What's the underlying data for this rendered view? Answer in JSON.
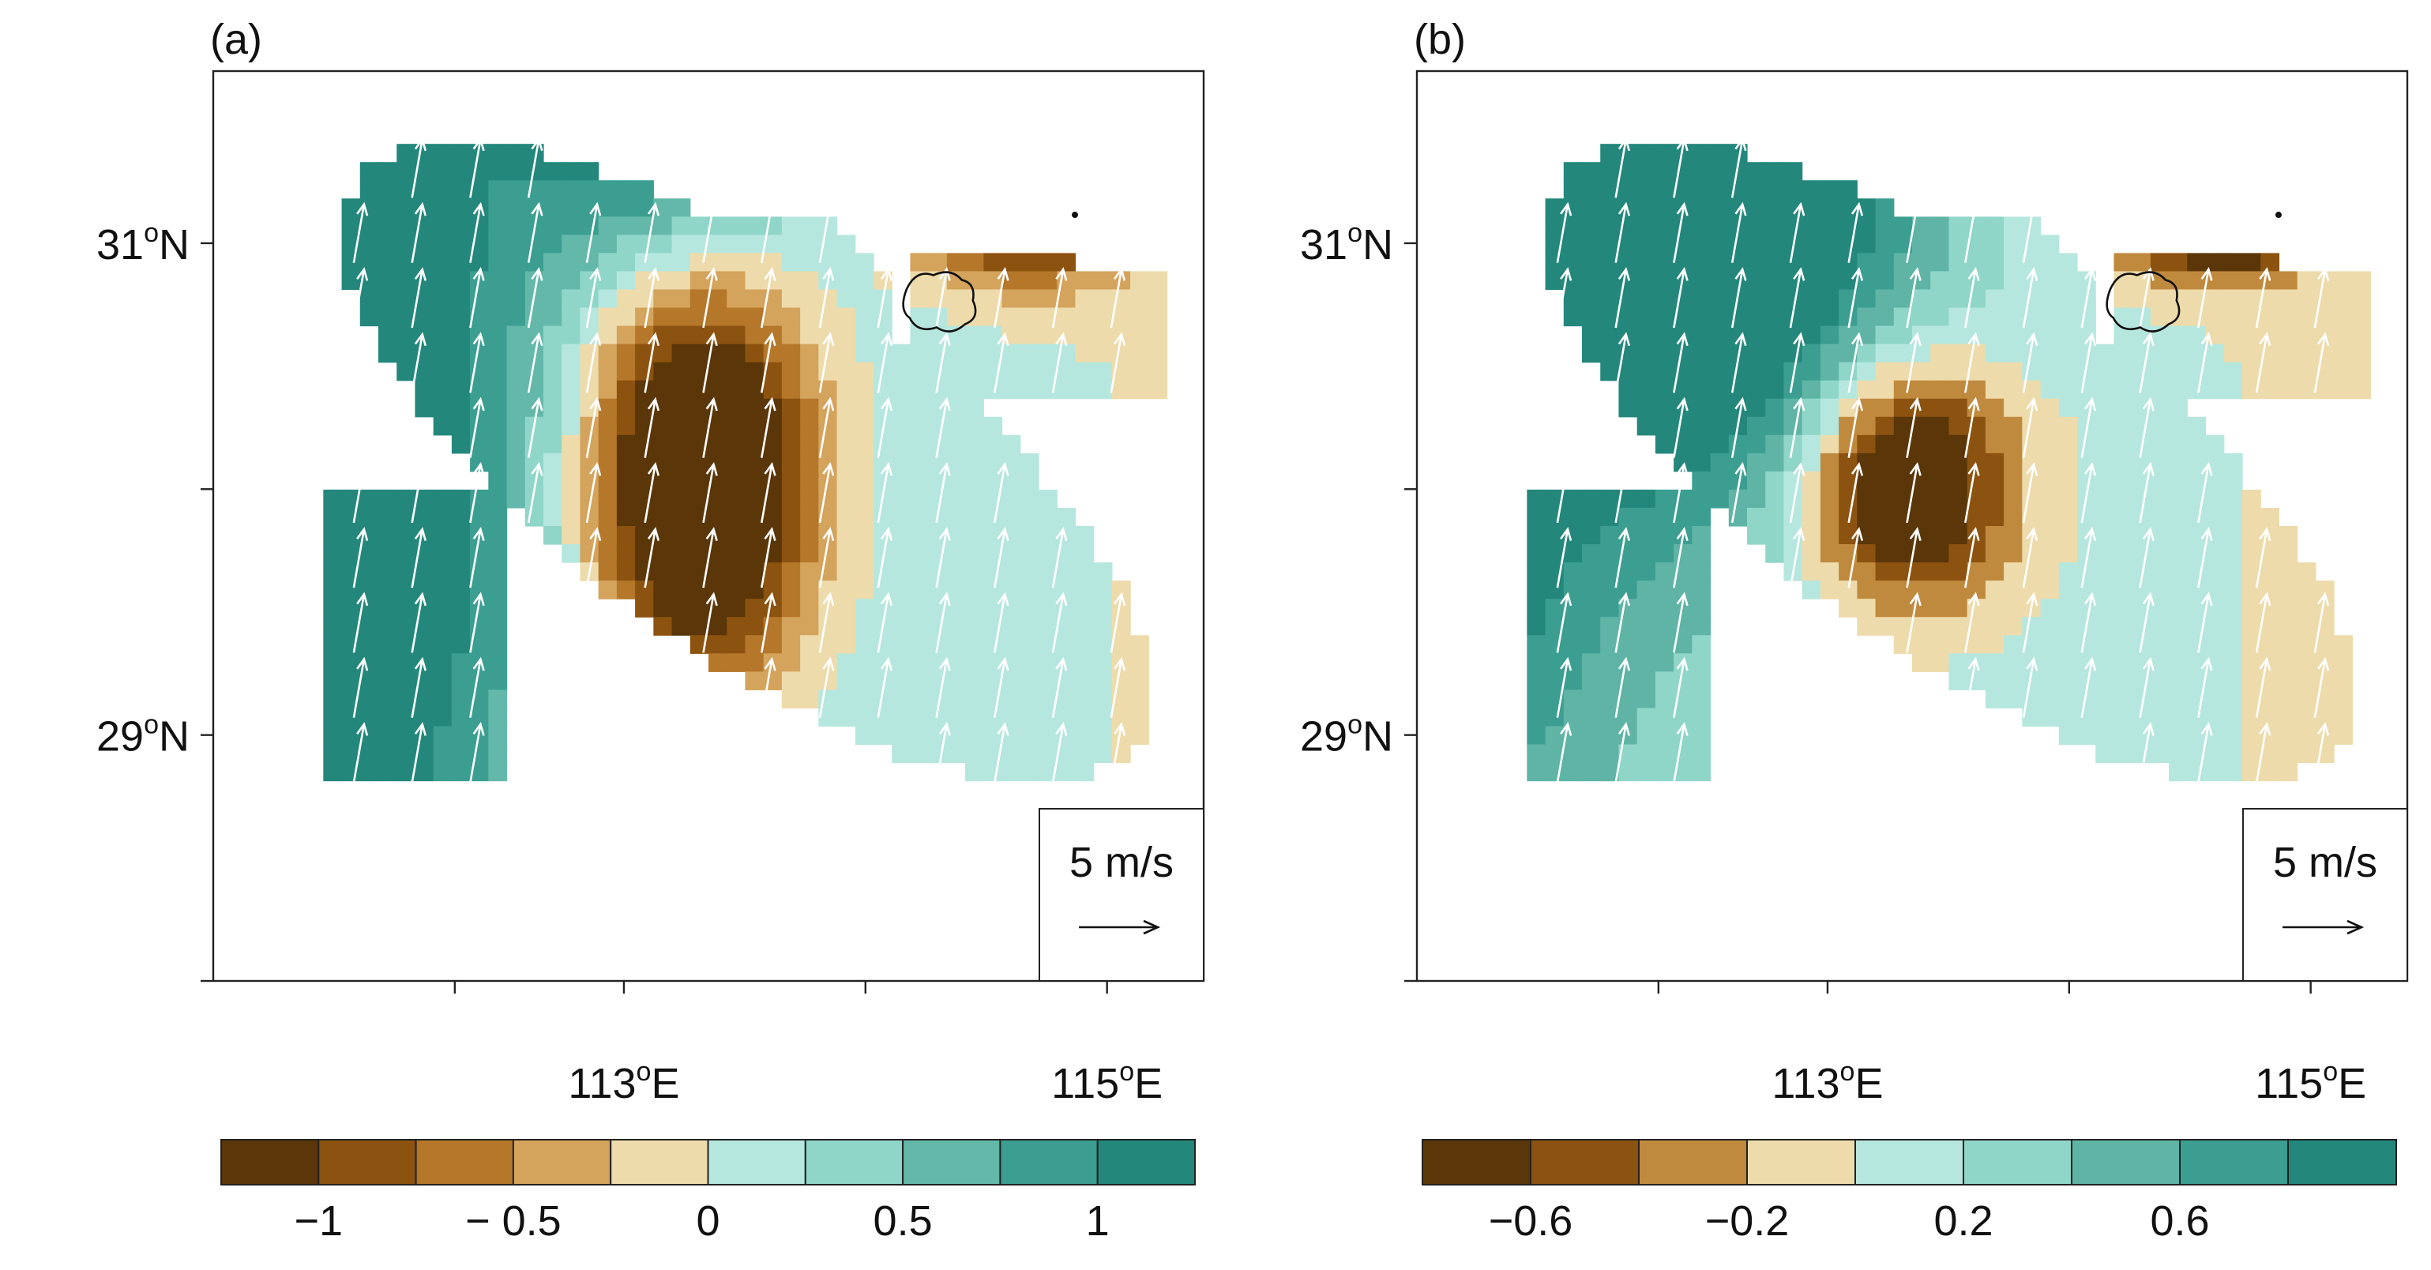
{
  "chart_data": [
    {
      "type": "heatmap",
      "panel_label": "(a)",
      "overlay": "wind vectors",
      "x_ticks": [
        {
          "lon": 113,
          "deg": "113",
          "unit": "E"
        },
        {
          "lon": 115,
          "deg": "115",
          "unit": "E"
        }
      ],
      "x_minor_ticks": [
        112.3,
        113.0,
        114.0,
        115.0
      ],
      "y_ticks": [
        {
          "lat": 29,
          "deg": "29",
          "unit": "N"
        },
        {
          "lat": 31,
          "deg": "31",
          "unit": "N"
        }
      ],
      "y_minor_ticks": [
        28.0,
        29.0,
        30.0,
        31.0
      ],
      "xlim": [
        111.3,
        115.4
      ],
      "ylim": [
        28.0,
        31.7
      ],
      "field_extremes": {
        "min": -1.25,
        "max": 1.25
      },
      "colorbar": {
        "colors": [
          "#5a3609",
          "#8c520f",
          "#b5772a",
          "#d4a35c",
          "#eedbab",
          "#b6e7de",
          "#8fd6c9",
          "#63b8aa",
          "#3b9e91",
          "#24877c"
        ],
        "tick_labels": [
          "−1",
          "− 0.5",
          "0",
          "0.5",
          "1"
        ],
        "tick_positions": [
          1,
          3,
          5,
          7,
          9
        ]
      },
      "reference_vector": {
        "label": "5 m/s",
        "magnitude": 5
      }
    },
    {
      "type": "heatmap",
      "panel_label": "(b)",
      "overlay": "wind vectors",
      "x_ticks": [
        {
          "lon": 113,
          "deg": "113",
          "unit": "E"
        },
        {
          "lon": 115,
          "deg": "115",
          "unit": "E"
        }
      ],
      "x_minor_ticks": [
        112.3,
        113.0,
        114.0,
        115.0
      ],
      "y_ticks": [
        {
          "lat": 29,
          "deg": "29",
          "unit": "N"
        },
        {
          "lat": 31,
          "deg": "31",
          "unit": "N"
        }
      ],
      "y_minor_ticks": [
        28.0,
        29.0,
        30.0,
        31.0
      ],
      "xlim": [
        111.3,
        115.4
      ],
      "ylim": [
        28.0,
        31.7
      ],
      "field_extremes": {
        "min": -0.8,
        "max": 0.8
      },
      "colorbar": {
        "colors": [
          "#5a3609",
          "#8c520f",
          "#c08a3e",
          "#eedbab",
          "#b6e7de",
          "#8fd6c9",
          "#5fb4a6",
          "#3b9e91",
          "#24877c"
        ],
        "tick_labels": [
          "−0.6",
          "−0.2",
          "0.2",
          "0.6"
        ],
        "tick_positions": [
          1,
          3,
          5,
          7
        ]
      },
      "reference_vector": {
        "label": "5 m/s",
        "magnitude": 5
      }
    }
  ]
}
